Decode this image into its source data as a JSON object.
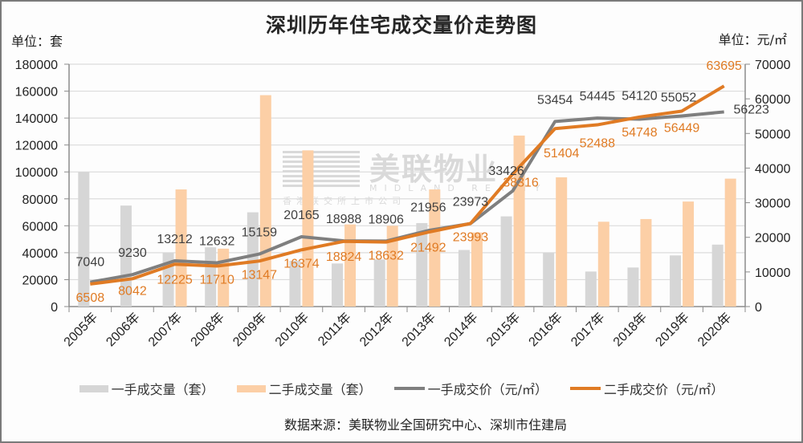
{
  "title": "深圳历年住宅成交量价走势图",
  "unit_left": "单位：套",
  "unit_right": "单位：元/㎡",
  "watermark": {
    "brand_cn": "美联物业",
    "brand_en": "MIDLAND REALTY",
    "sub": "香港联交所上市公司"
  },
  "colors": {
    "new_volume": "#d6d6d6",
    "second_volume": "#fccfa6",
    "new_price": "#7f7f7f",
    "second_price": "#e07b24",
    "new_price_label": "#404040",
    "second_price_label": "#e07b24",
    "axis": "#8c8c8c",
    "grid": "#dcdcdc"
  },
  "legend": [
    {
      "label": "一手成交量（套）",
      "type": "bar",
      "color": "#d6d6d6"
    },
    {
      "label": "二手成交量（套）",
      "type": "bar",
      "color": "#fccfa6"
    },
    {
      "label": "一手成交价（元/㎡）",
      "type": "line",
      "color": "#7f7f7f"
    },
    {
      "label": "二手成交价（元/㎡）",
      "type": "line",
      "color": "#e07b24"
    }
  ],
  "source": "数据来源：美联物业全国研究中心、深圳市住建局",
  "chart_data": {
    "type": "bar",
    "title": "深圳历年住宅成交量价走势图",
    "xlabel": "",
    "ylabel": "单位：套",
    "y2label": "单位：元/㎡",
    "ylim": [
      0,
      180000
    ],
    "y2lim": [
      0,
      70000
    ],
    "yticks": [
      0,
      20000,
      40000,
      60000,
      80000,
      100000,
      120000,
      140000,
      160000,
      180000
    ],
    "y2ticks": [
      0,
      10000,
      20000,
      30000,
      40000,
      50000,
      60000,
      70000
    ],
    "grid": true,
    "legend_position": "bottom",
    "categories": [
      "2005年",
      "2006年",
      "2007年",
      "2008年",
      "2009年",
      "2010年",
      "2011年",
      "2012年",
      "2013年",
      "2014年",
      "2015年",
      "2016年",
      "2017年",
      "2018年",
      "2019年",
      "2020年"
    ],
    "series": [
      {
        "name": "一手成交量（套）",
        "type": "bar",
        "axis": "left",
        "values": [
          100000,
          75000,
          40000,
          44000,
          70000,
          34000,
          32000,
          35000,
          62000,
          42000,
          67000,
          40000,
          26000,
          29000,
          38000,
          46000
        ]
      },
      {
        "name": "二手成交量（套）",
        "type": "bar",
        "axis": "left",
        "values": [
          0,
          0,
          87000,
          43000,
          157000,
          116000,
          61000,
          60000,
          87000,
          55000,
          127000,
          96000,
          63000,
          65000,
          78000,
          95000
        ]
      },
      {
        "name": "一手成交价（元/㎡）",
        "type": "line",
        "axis": "right",
        "values": [
          7040,
          9230,
          13212,
          12632,
          15159,
          20165,
          18988,
          18906,
          21956,
          23973,
          33426,
          53454,
          54445,
          54120,
          55052,
          56223
        ]
      },
      {
        "name": "二手成交价（元/㎡）",
        "type": "line",
        "axis": "right",
        "values": [
          6508,
          8042,
          12225,
          11710,
          13147,
          16374,
          18824,
          18632,
          21492,
          23993,
          38316,
          51404,
          52488,
          54748,
          56449,
          63695
        ]
      }
    ]
  }
}
